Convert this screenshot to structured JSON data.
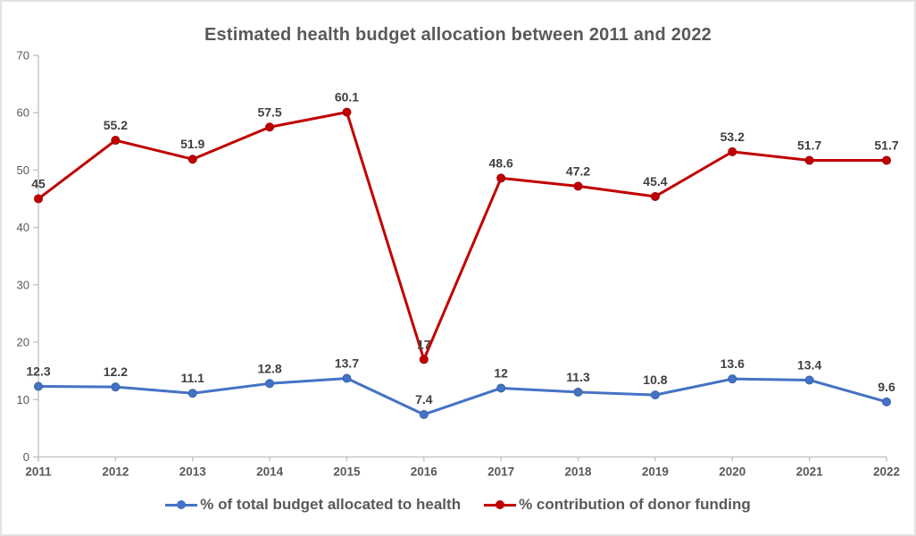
{
  "window": {
    "background": "#FFFFFF",
    "border_color": "#E2E2E2"
  },
  "chart_data": {
    "type": "line",
    "title": "Estimated health budget allocation between 2011 and 2022",
    "categories": [
      "2011",
      "2012",
      "2013",
      "2014",
      "2015",
      "2016",
      "2017",
      "2018",
      "2019",
      "2020",
      "2021",
      "2022"
    ],
    "series": [
      {
        "name": "% of total budget allocated to health",
        "color": "#4472C4",
        "marker_stroke": "#3A63AB",
        "values": [
          12.3,
          12.2,
          11.1,
          12.8,
          13.7,
          7.4,
          12,
          11.3,
          10.8,
          13.6,
          13.4,
          9.6
        ]
      },
      {
        "name": "% contribution of donor funding",
        "color": "#C00000",
        "marker_stroke": "#A00000",
        "values": [
          45,
          55.2,
          51.9,
          57.5,
          60.1,
          17,
          48.6,
          47.2,
          45.4,
          53.2,
          51.7,
          51.7
        ]
      }
    ],
    "xlabel": "",
    "ylabel": "",
    "ylim": [
      0,
      70
    ],
    "ytick_step": 10,
    "grid": false,
    "legend_position": "bottom",
    "data_labels": "above",
    "styles": {
      "title_color": "#595959",
      "axis_line_color": "#BFBFBF",
      "axis_label_color": "#595959",
      "data_label_color": "#404040",
      "legend_text_color": "#595959"
    }
  }
}
